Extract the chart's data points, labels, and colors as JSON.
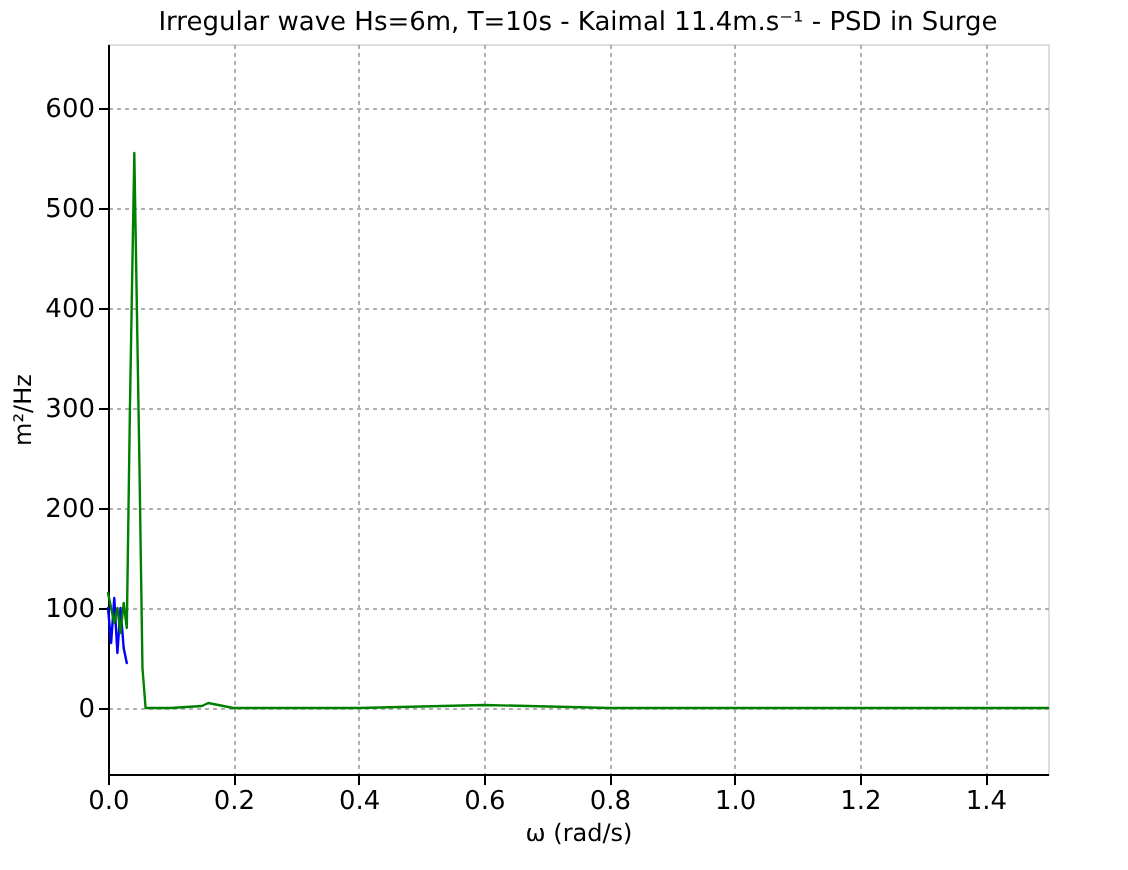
{
  "chart_data": {
    "type": "line",
    "title": "Irregular wave Hs=6m, T=10s - Kaimal 11.4m.s⁻¹ - PSD in Surge",
    "xlabel": "ω (rad/s)",
    "ylabel": "m²/Hz",
    "series": [
      {
        "color": "#0000ff",
        "x": [
          0,
          0.005,
          0.01,
          0.015,
          0.02,
          0.025,
          0.03
        ],
        "values": [
          100,
          65,
          110,
          55,
          100,
          60,
          45
        ]
      },
      {
        "color": "#008000",
        "x": [
          0,
          0.01,
          0.015,
          0.02,
          0.025,
          0.03,
          0.035,
          0.042,
          0.05,
          0.055,
          0.06,
          0.1,
          0.15,
          0.16,
          0.2,
          0.4,
          0.6,
          0.8,
          1.0,
          1.2,
          1.5
        ],
        "values": [
          115,
          85,
          100,
          75,
          105,
          80,
          300,
          555,
          250,
          40,
          0,
          0,
          2,
          5,
          0,
          0,
          3,
          0,
          0,
          0,
          0
        ]
      }
    ],
    "xlim": [
      0,
      1.5
    ],
    "xticks": [
      {
        "value": 0,
        "label": "0.0"
      },
      0.2,
      0.4,
      0.6,
      0.8,
      {
        "value": 1,
        "label": "1.0"
      },
      1.2,
      1.4
    ],
    "ylim": [
      -66,
      664
    ],
    "yticks": [
      0,
      100,
      200,
      300,
      400,
      500,
      600
    ],
    "grid": true,
    "legend": false,
    "marker": "none",
    "line_style": "solid"
  }
}
